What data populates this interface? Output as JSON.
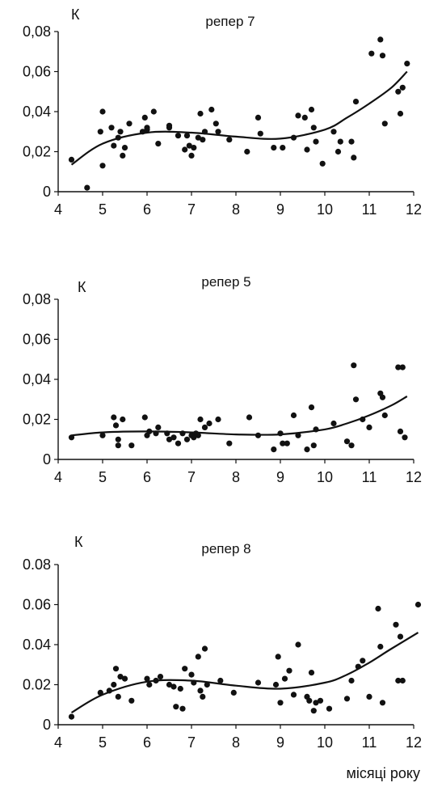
{
  "chart_data": [
    {
      "type": "scatter",
      "title": "репер 7",
      "ylabel": "К",
      "xlabel": "",
      "xlim": [
        4,
        12
      ],
      "ylim": [
        0,
        0.08
      ],
      "xticks": [
        "4",
        "5",
        "6",
        "7",
        "8",
        "9",
        "10",
        "11",
        "12"
      ],
      "yticks": [
        "0",
        "0,02",
        "0,04",
        "0,06",
        "0,08"
      ],
      "grid": false,
      "series": [
        {
          "points": [
            [
              4.3,
              0.016
            ],
            [
              4.65,
              0.002
            ],
            [
              4.95,
              0.03
            ],
            [
              5.0,
              0.04
            ],
            [
              5.0,
              0.013
            ],
            [
              5.2,
              0.032
            ],
            [
              5.25,
              0.023
            ],
            [
              5.35,
              0.027
            ],
            [
              5.4,
              0.03
            ],
            [
              5.45,
              0.018
            ],
            [
              5.5,
              0.022
            ],
            [
              5.6,
              0.034
            ],
            [
              5.9,
              0.03
            ],
            [
              5.95,
              0.037
            ],
            [
              6.0,
              0.032
            ],
            [
              6.0,
              0.031
            ],
            [
              6.15,
              0.04
            ],
            [
              6.25,
              0.024
            ],
            [
              6.5,
              0.033
            ],
            [
              6.5,
              0.032
            ],
            [
              6.7,
              0.028
            ],
            [
              6.85,
              0.021
            ],
            [
              6.9,
              0.028
            ],
            [
              6.95,
              0.023
            ],
            [
              7.0,
              0.018
            ],
            [
              7.05,
              0.022
            ],
            [
              7.15,
              0.027
            ],
            [
              7.2,
              0.039
            ],
            [
              7.25,
              0.026
            ],
            [
              7.3,
              0.03
            ],
            [
              7.45,
              0.041
            ],
            [
              7.55,
              0.034
            ],
            [
              7.6,
              0.03
            ],
            [
              7.85,
              0.026
            ],
            [
              8.25,
              0.02
            ],
            [
              8.5,
              0.037
            ],
            [
              8.55,
              0.029
            ],
            [
              8.85,
              0.022
            ],
            [
              9.05,
              0.022
            ],
            [
              9.3,
              0.027
            ],
            [
              9.4,
              0.038
            ],
            [
              9.55,
              0.037
            ],
            [
              9.6,
              0.021
            ],
            [
              9.7,
              0.041
            ],
            [
              9.75,
              0.032
            ],
            [
              9.8,
              0.025
            ],
            [
              9.95,
              0.014
            ],
            [
              10.2,
              0.03
            ],
            [
              10.3,
              0.02
            ],
            [
              10.35,
              0.025
            ],
            [
              10.6,
              0.025
            ],
            [
              10.65,
              0.017
            ],
            [
              10.7,
              0.045
            ],
            [
              11.05,
              0.069
            ],
            [
              11.25,
              0.076
            ],
            [
              11.3,
              0.068
            ],
            [
              11.35,
              0.034
            ],
            [
              11.65,
              0.05
            ],
            [
              11.7,
              0.039
            ],
            [
              11.75,
              0.052
            ],
            [
              11.85,
              0.064
            ]
          ],
          "trend": [
            [
              4.3,
              0.0135
            ],
            [
              5.0,
              0.024
            ],
            [
              6.0,
              0.0295
            ],
            [
              7.0,
              0.0295
            ],
            [
              8.0,
              0.0275
            ],
            [
              9.0,
              0.0265
            ],
            [
              10.0,
              0.031
            ],
            [
              10.5,
              0.037
            ],
            [
              11.0,
              0.044
            ],
            [
              11.5,
              0.052
            ],
            [
              11.85,
              0.06
            ]
          ]
        }
      ]
    },
    {
      "type": "scatter",
      "title": "репер 5",
      "ylabel": "К",
      "xlabel": "",
      "xlim": [
        4,
        12
      ],
      "ylim": [
        0,
        0.08
      ],
      "xticks": [
        "4",
        "5",
        "6",
        "7",
        "8",
        "9",
        "10",
        "11",
        "12"
      ],
      "yticks": [
        "0",
        "0,02",
        "0,04",
        "0,06",
        "0,08"
      ],
      "grid": false,
      "series": [
        {
          "points": [
            [
              4.3,
              0.011
            ],
            [
              5.0,
              0.012
            ],
            [
              5.25,
              0.021
            ],
            [
              5.3,
              0.017
            ],
            [
              5.35,
              0.01
            ],
            [
              5.35,
              0.007
            ],
            [
              5.45,
              0.02
            ],
            [
              5.65,
              0.007
            ],
            [
              5.95,
              0.021
            ],
            [
              6.0,
              0.012
            ],
            [
              6.05,
              0.014
            ],
            [
              6.2,
              0.013
            ],
            [
              6.25,
              0.016
            ],
            [
              6.45,
              0.013
            ],
            [
              6.5,
              0.01
            ],
            [
              6.6,
              0.011
            ],
            [
              6.7,
              0.008
            ],
            [
              6.8,
              0.013
            ],
            [
              6.9,
              0.01
            ],
            [
              7.0,
              0.012
            ],
            [
              7.05,
              0.011
            ],
            [
              7.1,
              0.013
            ],
            [
              7.15,
              0.012
            ],
            [
              7.2,
              0.02
            ],
            [
              7.3,
              0.016
            ],
            [
              7.4,
              0.018
            ],
            [
              7.6,
              0.02
            ],
            [
              7.85,
              0.008
            ],
            [
              8.3,
              0.021
            ],
            [
              8.5,
              0.012
            ],
            [
              8.85,
              0.005
            ],
            [
              9.0,
              0.013
            ],
            [
              9.05,
              0.008
            ],
            [
              9.15,
              0.008
            ],
            [
              9.3,
              0.022
            ],
            [
              9.4,
              0.012
            ],
            [
              9.6,
              0.005
            ],
            [
              9.7,
              0.026
            ],
            [
              9.75,
              0.007
            ],
            [
              9.8,
              0.015
            ],
            [
              10.2,
              0.018
            ],
            [
              10.5,
              0.009
            ],
            [
              10.6,
              0.007
            ],
            [
              10.65,
              0.047
            ],
            [
              10.7,
              0.03
            ],
            [
              10.85,
              0.02
            ],
            [
              11.0,
              0.016
            ],
            [
              11.25,
              0.033
            ],
            [
              11.3,
              0.031
            ],
            [
              11.35,
              0.022
            ],
            [
              11.65,
              0.046
            ],
            [
              11.7,
              0.014
            ],
            [
              11.75,
              0.046
            ],
            [
              11.8,
              0.011
            ]
          ],
          "trend": [
            [
              4.3,
              0.012
            ],
            [
              5.0,
              0.0135
            ],
            [
              6.0,
              0.014
            ],
            [
              7.0,
              0.0135
            ],
            [
              8.0,
              0.0125
            ],
            [
              9.0,
              0.0125
            ],
            [
              10.0,
              0.015
            ],
            [
              10.5,
              0.018
            ],
            [
              11.0,
              0.022
            ],
            [
              11.5,
              0.027
            ],
            [
              11.85,
              0.0315
            ]
          ]
        }
      ]
    },
    {
      "type": "scatter",
      "title": "репер 8",
      "ylabel": "К",
      "xlabel": "місяці року",
      "xlim": [
        4,
        12
      ],
      "ylim": [
        0,
        0.08
      ],
      "xticks": [
        "4",
        "5",
        "6",
        "7",
        "8",
        "9",
        "10",
        "11",
        "12"
      ],
      "yticks": [
        "0",
        "0.02",
        "0.04",
        "0.06",
        "0.08"
      ],
      "grid": false,
      "series": [
        {
          "points": [
            [
              4.3,
              0.004
            ],
            [
              4.95,
              0.016
            ],
            [
              5.15,
              0.017
            ],
            [
              5.25,
              0.02
            ],
            [
              5.3,
              0.028
            ],
            [
              5.35,
              0.014
            ],
            [
              5.4,
              0.024
            ],
            [
              5.5,
              0.023
            ],
            [
              5.65,
              0.012
            ],
            [
              6.0,
              0.023
            ],
            [
              6.05,
              0.02
            ],
            [
              6.2,
              0.022
            ],
            [
              6.3,
              0.024
            ],
            [
              6.5,
              0.02
            ],
            [
              6.6,
              0.019
            ],
            [
              6.65,
              0.009
            ],
            [
              6.75,
              0.018
            ],
            [
              6.8,
              0.008
            ],
            [
              6.85,
              0.028
            ],
            [
              7.0,
              0.025
            ],
            [
              7.05,
              0.021
            ],
            [
              7.15,
              0.034
            ],
            [
              7.2,
              0.017
            ],
            [
              7.25,
              0.014
            ],
            [
              7.3,
              0.038
            ],
            [
              7.35,
              0.02
            ],
            [
              7.65,
              0.022
            ],
            [
              7.95,
              0.016
            ],
            [
              8.5,
              0.021
            ],
            [
              8.9,
              0.02
            ],
            [
              8.95,
              0.034
            ],
            [
              9.0,
              0.011
            ],
            [
              9.1,
              0.023
            ],
            [
              9.2,
              0.027
            ],
            [
              9.3,
              0.015
            ],
            [
              9.4,
              0.04
            ],
            [
              9.6,
              0.014
            ],
            [
              9.65,
              0.012
            ],
            [
              9.7,
              0.026
            ],
            [
              9.75,
              0.007
            ],
            [
              9.8,
              0.011
            ],
            [
              9.9,
              0.012
            ],
            [
              10.1,
              0.008
            ],
            [
              10.5,
              0.013
            ],
            [
              10.6,
              0.022
            ],
            [
              10.75,
              0.029
            ],
            [
              10.85,
              0.032
            ],
            [
              11.0,
              0.014
            ],
            [
              11.2,
              0.058
            ],
            [
              11.25,
              0.039
            ],
            [
              11.3,
              0.011
            ],
            [
              11.6,
              0.05
            ],
            [
              11.65,
              0.022
            ],
            [
              11.7,
              0.044
            ],
            [
              11.75,
              0.022
            ],
            [
              12.1,
              0.06
            ]
          ],
          "trend": [
            [
              4.3,
              0.006
            ],
            [
              5.0,
              0.015
            ],
            [
              6.0,
              0.0215
            ],
            [
              7.0,
              0.022
            ],
            [
              8.0,
              0.0195
            ],
            [
              9.0,
              0.018
            ],
            [
              10.0,
              0.021
            ],
            [
              10.5,
              0.025
            ],
            [
              11.0,
              0.031
            ],
            [
              11.5,
              0.038
            ],
            [
              12.1,
              0.046
            ]
          ]
        }
      ]
    }
  ]
}
